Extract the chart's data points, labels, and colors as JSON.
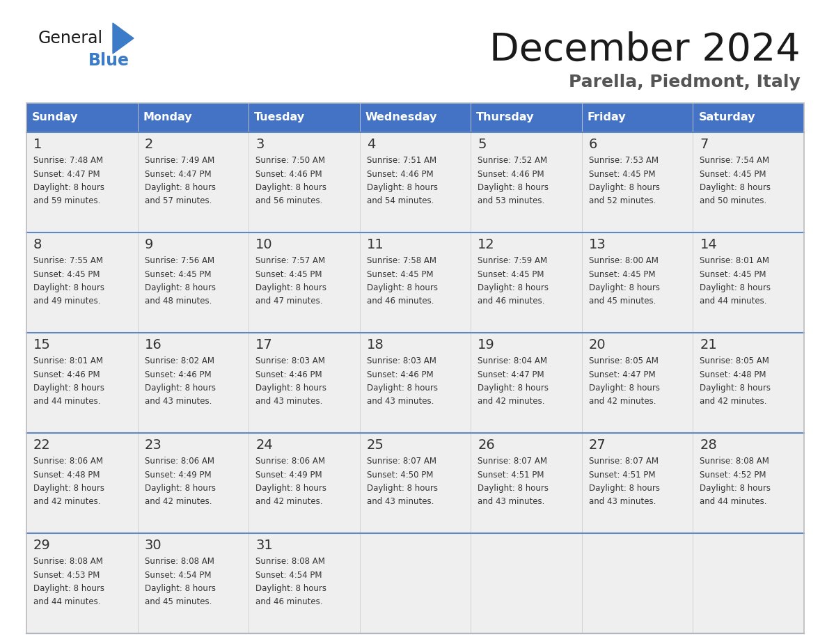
{
  "title": "December 2024",
  "subtitle": "Parella, Piedmont, Italy",
  "header_color": "#4472C4",
  "header_text_color": "#FFFFFF",
  "days_of_week": [
    "Sunday",
    "Monday",
    "Tuesday",
    "Wednesday",
    "Thursday",
    "Friday",
    "Saturday"
  ],
  "bg_color": "#FFFFFF",
  "cell_bg": "#EFEFEF",
  "border_color": "#4472C4",
  "row_border_color": "#5B8AC4",
  "text_color": "#333333",
  "logo_general_color": "#1a1a1a",
  "logo_blue_color": "#3B7BC8",
  "logo_triangle_color": "#3B7BC8",
  "calendar": [
    [
      {
        "day": 1,
        "sunrise": "7:48 AM",
        "sunset": "4:47 PM",
        "daylight": "8 hours and 59 minutes"
      },
      {
        "day": 2,
        "sunrise": "7:49 AM",
        "sunset": "4:47 PM",
        "daylight": "8 hours and 57 minutes"
      },
      {
        "day": 3,
        "sunrise": "7:50 AM",
        "sunset": "4:46 PM",
        "daylight": "8 hours and 56 minutes"
      },
      {
        "day": 4,
        "sunrise": "7:51 AM",
        "sunset": "4:46 PM",
        "daylight": "8 hours and 54 minutes"
      },
      {
        "day": 5,
        "sunrise": "7:52 AM",
        "sunset": "4:46 PM",
        "daylight": "8 hours and 53 minutes"
      },
      {
        "day": 6,
        "sunrise": "7:53 AM",
        "sunset": "4:45 PM",
        "daylight": "8 hours and 52 minutes"
      },
      {
        "day": 7,
        "sunrise": "7:54 AM",
        "sunset": "4:45 PM",
        "daylight": "8 hours and 50 minutes"
      }
    ],
    [
      {
        "day": 8,
        "sunrise": "7:55 AM",
        "sunset": "4:45 PM",
        "daylight": "8 hours and 49 minutes"
      },
      {
        "day": 9,
        "sunrise": "7:56 AM",
        "sunset": "4:45 PM",
        "daylight": "8 hours and 48 minutes"
      },
      {
        "day": 10,
        "sunrise": "7:57 AM",
        "sunset": "4:45 PM",
        "daylight": "8 hours and 47 minutes"
      },
      {
        "day": 11,
        "sunrise": "7:58 AM",
        "sunset": "4:45 PM",
        "daylight": "8 hours and 46 minutes"
      },
      {
        "day": 12,
        "sunrise": "7:59 AM",
        "sunset": "4:45 PM",
        "daylight": "8 hours and 46 minutes"
      },
      {
        "day": 13,
        "sunrise": "8:00 AM",
        "sunset": "4:45 PM",
        "daylight": "8 hours and 45 minutes"
      },
      {
        "day": 14,
        "sunrise": "8:01 AM",
        "sunset": "4:45 PM",
        "daylight": "8 hours and 44 minutes"
      }
    ],
    [
      {
        "day": 15,
        "sunrise": "8:01 AM",
        "sunset": "4:46 PM",
        "daylight": "8 hours and 44 minutes"
      },
      {
        "day": 16,
        "sunrise": "8:02 AM",
        "sunset": "4:46 PM",
        "daylight": "8 hours and 43 minutes"
      },
      {
        "day": 17,
        "sunrise": "8:03 AM",
        "sunset": "4:46 PM",
        "daylight": "8 hours and 43 minutes"
      },
      {
        "day": 18,
        "sunrise": "8:03 AM",
        "sunset": "4:46 PM",
        "daylight": "8 hours and 43 minutes"
      },
      {
        "day": 19,
        "sunrise": "8:04 AM",
        "sunset": "4:47 PM",
        "daylight": "8 hours and 42 minutes"
      },
      {
        "day": 20,
        "sunrise": "8:05 AM",
        "sunset": "4:47 PM",
        "daylight": "8 hours and 42 minutes"
      },
      {
        "day": 21,
        "sunrise": "8:05 AM",
        "sunset": "4:48 PM",
        "daylight": "8 hours and 42 minutes"
      }
    ],
    [
      {
        "day": 22,
        "sunrise": "8:06 AM",
        "sunset": "4:48 PM",
        "daylight": "8 hours and 42 minutes"
      },
      {
        "day": 23,
        "sunrise": "8:06 AM",
        "sunset": "4:49 PM",
        "daylight": "8 hours and 42 minutes"
      },
      {
        "day": 24,
        "sunrise": "8:06 AM",
        "sunset": "4:49 PM",
        "daylight": "8 hours and 42 minutes"
      },
      {
        "day": 25,
        "sunrise": "8:07 AM",
        "sunset": "4:50 PM",
        "daylight": "8 hours and 43 minutes"
      },
      {
        "day": 26,
        "sunrise": "8:07 AM",
        "sunset": "4:51 PM",
        "daylight": "8 hours and 43 minutes"
      },
      {
        "day": 27,
        "sunrise": "8:07 AM",
        "sunset": "4:51 PM",
        "daylight": "8 hours and 43 minutes"
      },
      {
        "day": 28,
        "sunrise": "8:08 AM",
        "sunset": "4:52 PM",
        "daylight": "8 hours and 44 minutes"
      }
    ],
    [
      {
        "day": 29,
        "sunrise": "8:08 AM",
        "sunset": "4:53 PM",
        "daylight": "8 hours and 44 minutes"
      },
      {
        "day": 30,
        "sunrise": "8:08 AM",
        "sunset": "4:54 PM",
        "daylight": "8 hours and 45 minutes"
      },
      {
        "day": 31,
        "sunrise": "8:08 AM",
        "sunset": "4:54 PM",
        "daylight": "8 hours and 46 minutes"
      },
      null,
      null,
      null,
      null
    ]
  ]
}
